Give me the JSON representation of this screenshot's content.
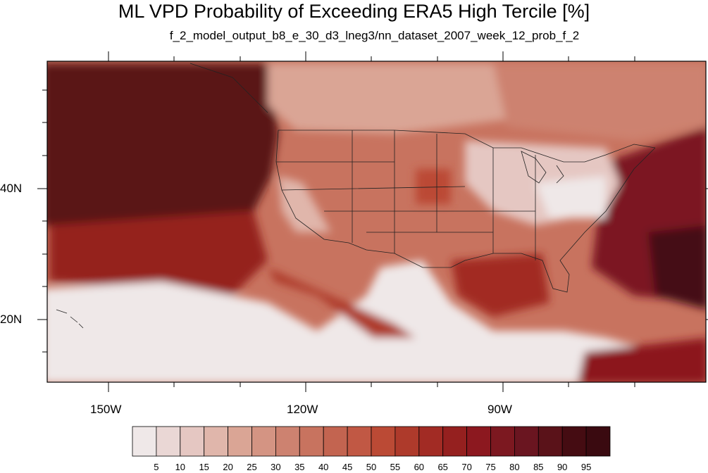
{
  "title": "ML VPD Probability of Exceeding ERA5 High Tercile [%]",
  "subtitle": "f_2_model_output_b8_e_30_d3_lneg3/nn_dataset_2007_week_12_prob_f_2",
  "map": {
    "region": "contiguous-united-states-and-surrounding-ocean",
    "lon_ticks": [
      "150W",
      "120W",
      "90W"
    ],
    "lat_ticks": [
      "40N",
      "20N"
    ]
  },
  "colorbar": {
    "labels": [
      "5",
      "10",
      "15",
      "20",
      "25",
      "30",
      "35",
      "40",
      "45",
      "50",
      "55",
      "60",
      "65",
      "70",
      "75",
      "80",
      "85",
      "90",
      "95"
    ],
    "colors": [
      "#efe8e8",
      "#ead7d5",
      "#e5c7c2",
      "#e0b6ab",
      "#daa595",
      "#d49483",
      "#cd8270",
      "#c8735f",
      "#c36450",
      "#c15844",
      "#bb4a35",
      "#ae3a2b",
      "#a22b24",
      "#95201f",
      "#8c181f",
      "#7c1820",
      "#6a1520",
      "#5a1219",
      "#450c12",
      "#3a0a10"
    ]
  }
}
